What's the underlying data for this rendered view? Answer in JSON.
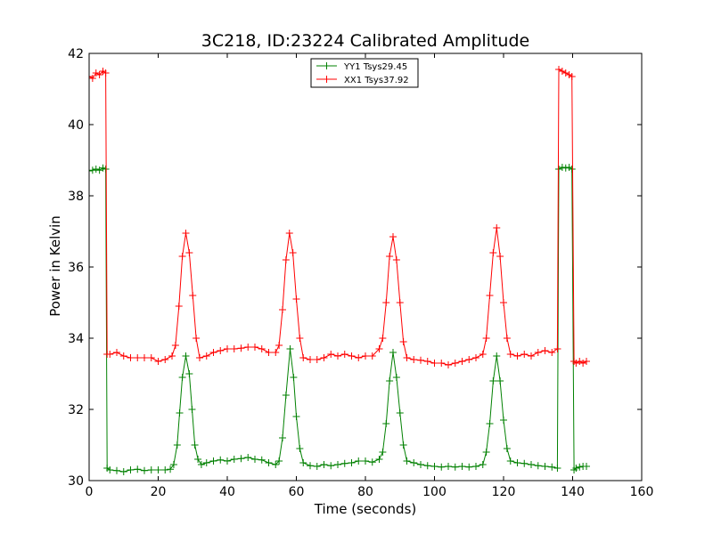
{
  "chart_data": {
    "type": "line",
    "title": "3C218, ID:23224 Calibrated Amplitude",
    "xlabel": "Time (seconds)",
    "ylabel": "Power in Kelvin",
    "xlim": [
      0,
      160
    ],
    "ylim": [
      30,
      42
    ],
    "xticks": [
      0,
      20,
      40,
      60,
      80,
      100,
      120,
      140,
      160
    ],
    "yticks": [
      30,
      32,
      34,
      36,
      38,
      40,
      42
    ],
    "grid": false,
    "legend_position": "top-center",
    "marker": "+",
    "series": [
      {
        "name": "YY1 Tsys29.45",
        "color": "#008000",
        "points": [
          [
            0,
            38.7
          ],
          [
            1,
            38.72
          ],
          [
            2,
            38.75
          ],
          [
            3,
            38.72
          ],
          [
            4,
            38.78
          ],
          [
            4.8,
            38.75
          ],
          [
            5.2,
            30.35
          ],
          [
            6,
            30.3
          ],
          [
            8,
            30.28
          ],
          [
            10,
            30.25
          ],
          [
            12,
            30.3
          ],
          [
            14,
            30.32
          ],
          [
            16,
            30.28
          ],
          [
            18,
            30.3
          ],
          [
            20,
            30.3
          ],
          [
            22,
            30.3
          ],
          [
            23.5,
            30.32
          ],
          [
            24.5,
            30.45
          ],
          [
            25.5,
            31.0
          ],
          [
            26.2,
            31.9
          ],
          [
            27,
            32.9
          ],
          [
            28,
            33.5
          ],
          [
            29,
            33.0
          ],
          [
            29.8,
            32.0
          ],
          [
            30.6,
            31.0
          ],
          [
            31.5,
            30.6
          ],
          [
            32.5,
            30.45
          ],
          [
            34,
            30.5
          ],
          [
            36,
            30.55
          ],
          [
            38,
            30.58
          ],
          [
            40,
            30.55
          ],
          [
            42,
            30.6
          ],
          [
            44,
            30.62
          ],
          [
            46,
            30.65
          ],
          [
            48,
            30.6
          ],
          [
            50,
            30.58
          ],
          [
            52,
            30.5
          ],
          [
            54,
            30.45
          ],
          [
            55,
            30.55
          ],
          [
            56,
            31.2
          ],
          [
            57,
            32.4
          ],
          [
            58.2,
            33.7
          ],
          [
            59.2,
            32.9
          ],
          [
            60,
            31.8
          ],
          [
            61,
            30.9
          ],
          [
            62,
            30.5
          ],
          [
            64,
            30.42
          ],
          [
            66,
            30.4
          ],
          [
            68,
            30.45
          ],
          [
            70,
            30.42
          ],
          [
            72,
            30.45
          ],
          [
            74,
            30.48
          ],
          [
            76,
            30.5
          ],
          [
            78,
            30.55
          ],
          [
            80,
            30.55
          ],
          [
            82,
            30.52
          ],
          [
            84,
            30.6
          ],
          [
            85,
            30.8
          ],
          [
            86,
            31.6
          ],
          [
            87,
            32.8
          ],
          [
            88,
            33.6
          ],
          [
            89,
            32.9
          ],
          [
            90,
            31.9
          ],
          [
            91,
            31.0
          ],
          [
            92,
            30.55
          ],
          [
            94,
            30.5
          ],
          [
            96,
            30.45
          ],
          [
            98,
            30.42
          ],
          [
            100,
            30.4
          ],
          [
            102,
            30.38
          ],
          [
            104,
            30.4
          ],
          [
            106,
            30.38
          ],
          [
            108,
            30.4
          ],
          [
            110,
            30.38
          ],
          [
            112,
            30.4
          ],
          [
            114,
            30.45
          ],
          [
            115,
            30.8
          ],
          [
            116,
            31.6
          ],
          [
            117,
            32.8
          ],
          [
            118,
            33.5
          ],
          [
            119,
            32.8
          ],
          [
            120,
            31.7
          ],
          [
            121,
            30.9
          ],
          [
            122,
            30.55
          ],
          [
            124,
            30.5
          ],
          [
            126,
            30.48
          ],
          [
            128,
            30.45
          ],
          [
            130,
            30.42
          ],
          [
            132,
            30.4
          ],
          [
            134,
            30.38
          ],
          [
            135.6,
            30.35
          ],
          [
            136,
            38.75
          ],
          [
            137,
            38.8
          ],
          [
            138,
            38.78
          ],
          [
            139,
            38.8
          ],
          [
            139.8,
            38.75
          ],
          [
            140.4,
            30.3
          ],
          [
            141,
            30.35
          ],
          [
            142,
            30.38
          ],
          [
            143,
            30.4
          ],
          [
            144,
            30.4
          ]
        ]
      },
      {
        "name": "XX1 Tsys37.92",
        "color": "#ff0000",
        "points": [
          [
            0,
            41.35
          ],
          [
            1,
            41.3
          ],
          [
            2,
            41.45
          ],
          [
            3,
            41.4
          ],
          [
            4,
            41.5
          ],
          [
            4.8,
            41.45
          ],
          [
            5.2,
            33.55
          ],
          [
            6,
            33.55
          ],
          [
            8,
            33.6
          ],
          [
            10,
            33.5
          ],
          [
            12,
            33.45
          ],
          [
            14,
            33.45
          ],
          [
            16,
            33.45
          ],
          [
            18,
            33.45
          ],
          [
            20,
            33.35
          ],
          [
            22,
            33.4
          ],
          [
            24,
            33.5
          ],
          [
            25,
            33.8
          ],
          [
            26,
            34.9
          ],
          [
            27,
            36.3
          ],
          [
            28,
            36.95
          ],
          [
            29,
            36.4
          ],
          [
            30,
            35.2
          ],
          [
            31,
            34.0
          ],
          [
            32,
            33.45
          ],
          [
            34,
            33.5
          ],
          [
            36,
            33.6
          ],
          [
            38,
            33.65
          ],
          [
            40,
            33.7
          ],
          [
            42,
            33.7
          ],
          [
            44,
            33.72
          ],
          [
            46,
            33.75
          ],
          [
            48,
            33.75
          ],
          [
            50,
            33.7
          ],
          [
            52,
            33.6
          ],
          [
            54,
            33.6
          ],
          [
            55,
            33.8
          ],
          [
            56,
            34.8
          ],
          [
            57,
            36.2
          ],
          [
            58,
            36.95
          ],
          [
            59,
            36.4
          ],
          [
            60,
            35.1
          ],
          [
            61,
            34.0
          ],
          [
            62,
            33.45
          ],
          [
            64,
            33.4
          ],
          [
            66,
            33.4
          ],
          [
            68,
            33.45
          ],
          [
            70,
            33.55
          ],
          [
            72,
            33.5
          ],
          [
            74,
            33.55
          ],
          [
            76,
            33.5
          ],
          [
            78,
            33.45
          ],
          [
            80,
            33.5
          ],
          [
            82,
            33.5
          ],
          [
            84,
            33.7
          ],
          [
            85,
            34.0
          ],
          [
            86,
            35.0
          ],
          [
            87,
            36.3
          ],
          [
            88,
            36.85
          ],
          [
            89,
            36.2
          ],
          [
            90,
            35.0
          ],
          [
            91,
            33.9
          ],
          [
            92,
            33.45
          ],
          [
            94,
            33.4
          ],
          [
            96,
            33.38
          ],
          [
            98,
            33.35
          ],
          [
            100,
            33.3
          ],
          [
            102,
            33.3
          ],
          [
            104,
            33.25
          ],
          [
            106,
            33.3
          ],
          [
            108,
            33.35
          ],
          [
            110,
            33.4
          ],
          [
            112,
            33.45
          ],
          [
            114,
            33.55
          ],
          [
            115,
            34.0
          ],
          [
            116,
            35.2
          ],
          [
            117,
            36.4
          ],
          [
            118,
            37.1
          ],
          [
            119,
            36.3
          ],
          [
            120,
            35.0
          ],
          [
            121,
            34.0
          ],
          [
            122,
            33.55
          ],
          [
            124,
            33.5
          ],
          [
            126,
            33.55
          ],
          [
            128,
            33.5
          ],
          [
            130,
            33.6
          ],
          [
            132,
            33.65
          ],
          [
            134,
            33.6
          ],
          [
            135.6,
            33.7
          ],
          [
            136,
            41.55
          ],
          [
            137,
            41.5
          ],
          [
            138,
            41.45
          ],
          [
            139,
            41.4
          ],
          [
            139.8,
            41.35
          ],
          [
            140.4,
            33.35
          ],
          [
            141,
            33.3
          ],
          [
            142,
            33.35
          ],
          [
            143,
            33.3
          ],
          [
            144,
            33.35
          ]
        ]
      }
    ]
  }
}
